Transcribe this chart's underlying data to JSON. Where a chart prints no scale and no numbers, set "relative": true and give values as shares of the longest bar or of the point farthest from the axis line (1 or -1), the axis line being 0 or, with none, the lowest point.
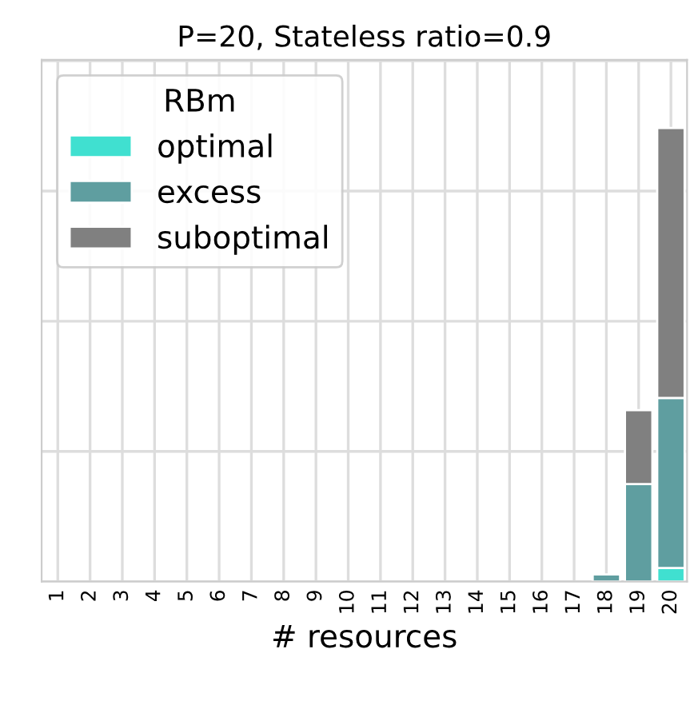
{
  "chart_data": {
    "type": "bar",
    "title": "P=20, Stateless ratio=0.9",
    "xlabel": "# resources",
    "legend_title": "RBm",
    "stacked": true,
    "relative": true,
    "grid": true,
    "legend": "top left",
    "tick_labels": "x",
    "categories": [
      "1",
      "2",
      "3",
      "4",
      "5",
      "6",
      "7",
      "8",
      "9",
      "10",
      "11",
      "12",
      "13",
      "14",
      "15",
      "16",
      "17",
      "18",
      "19",
      "20"
    ],
    "series": [
      {
        "name": "optimal",
        "color": "#40e0d0",
        "values": [
          null,
          null,
          null,
          null,
          null,
          null,
          null,
          null,
          null,
          null,
          null,
          null,
          null,
          null,
          null,
          null,
          null,
          null,
          null,
          0.03
        ]
      },
      {
        "name": "excess",
        "color": "#5f9ea0",
        "values": [
          null,
          null,
          null,
          null,
          null,
          null,
          null,
          null,
          null,
          null,
          null,
          null,
          null,
          null,
          null,
          null,
          null,
          0.016,
          0.215,
          0.375
        ]
      },
      {
        "name": "suboptimal",
        "color": "#808080",
        "values": [
          null,
          null,
          null,
          null,
          null,
          null,
          null,
          null,
          null,
          null,
          null,
          null,
          null,
          null,
          null,
          null,
          null,
          null,
          0.163,
          0.595
        ]
      }
    ]
  }
}
